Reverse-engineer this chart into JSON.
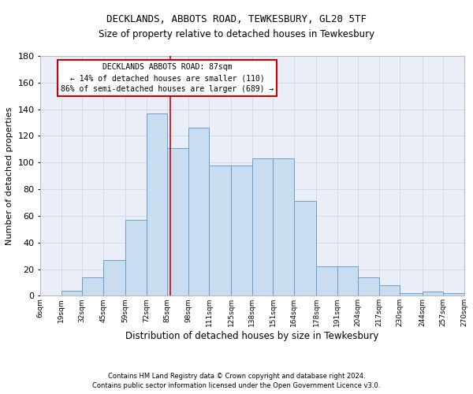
{
  "title": "DECKLANDS, ABBOTS ROAD, TEWKESBURY, GL20 5TF",
  "subtitle": "Size of property relative to detached houses in Tewkesbury",
  "xlabel": "Distribution of detached houses by size in Tewkesbury",
  "ylabel": "Number of detached properties",
  "footer1": "Contains HM Land Registry data © Crown copyright and database right 2024.",
  "footer2": "Contains public sector information licensed under the Open Government Licence v3.0.",
  "annotation_title": "DECKLANDS ABBOTS ROAD: 87sqm",
  "annotation_line1": "← 14% of detached houses are smaller (110)",
  "annotation_line2": "86% of semi-detached houses are larger (689) →",
  "marker_value": 87,
  "bin_edges": [
    6,
    19,
    32,
    45,
    59,
    72,
    85,
    98,
    111,
    125,
    138,
    151,
    164,
    178,
    191,
    204,
    217,
    230,
    244,
    257,
    270
  ],
  "bar_heights": [
    0,
    4,
    14,
    27,
    57,
    137,
    111,
    126,
    98,
    98,
    103,
    103,
    71,
    22,
    22,
    14,
    8,
    2,
    3,
    2
  ],
  "tick_labels": [
    "6sqm",
    "19sqm",
    "32sqm",
    "45sqm",
    "59sqm",
    "72sqm",
    "85sqm",
    "98sqm",
    "111sqm",
    "125sqm",
    "138sqm",
    "151sqm",
    "164sqm",
    "178sqm",
    "191sqm",
    "204sqm",
    "217sqm",
    "230sqm",
    "244sqm",
    "257sqm",
    "270sqm"
  ],
  "bar_color": "#c8ddf0",
  "bar_edge_color": "#6b9dc8",
  "grid_color": "#d0dae8",
  "background_color": "#eaeff7",
  "annotation_box_color": "#ffffff",
  "annotation_box_edge": "#cc0000",
  "marker_line_color": "#cc0000",
  "ylim": [
    0,
    180
  ],
  "yticks": [
    0,
    20,
    40,
    60,
    80,
    100,
    120,
    140,
    160,
    180
  ]
}
